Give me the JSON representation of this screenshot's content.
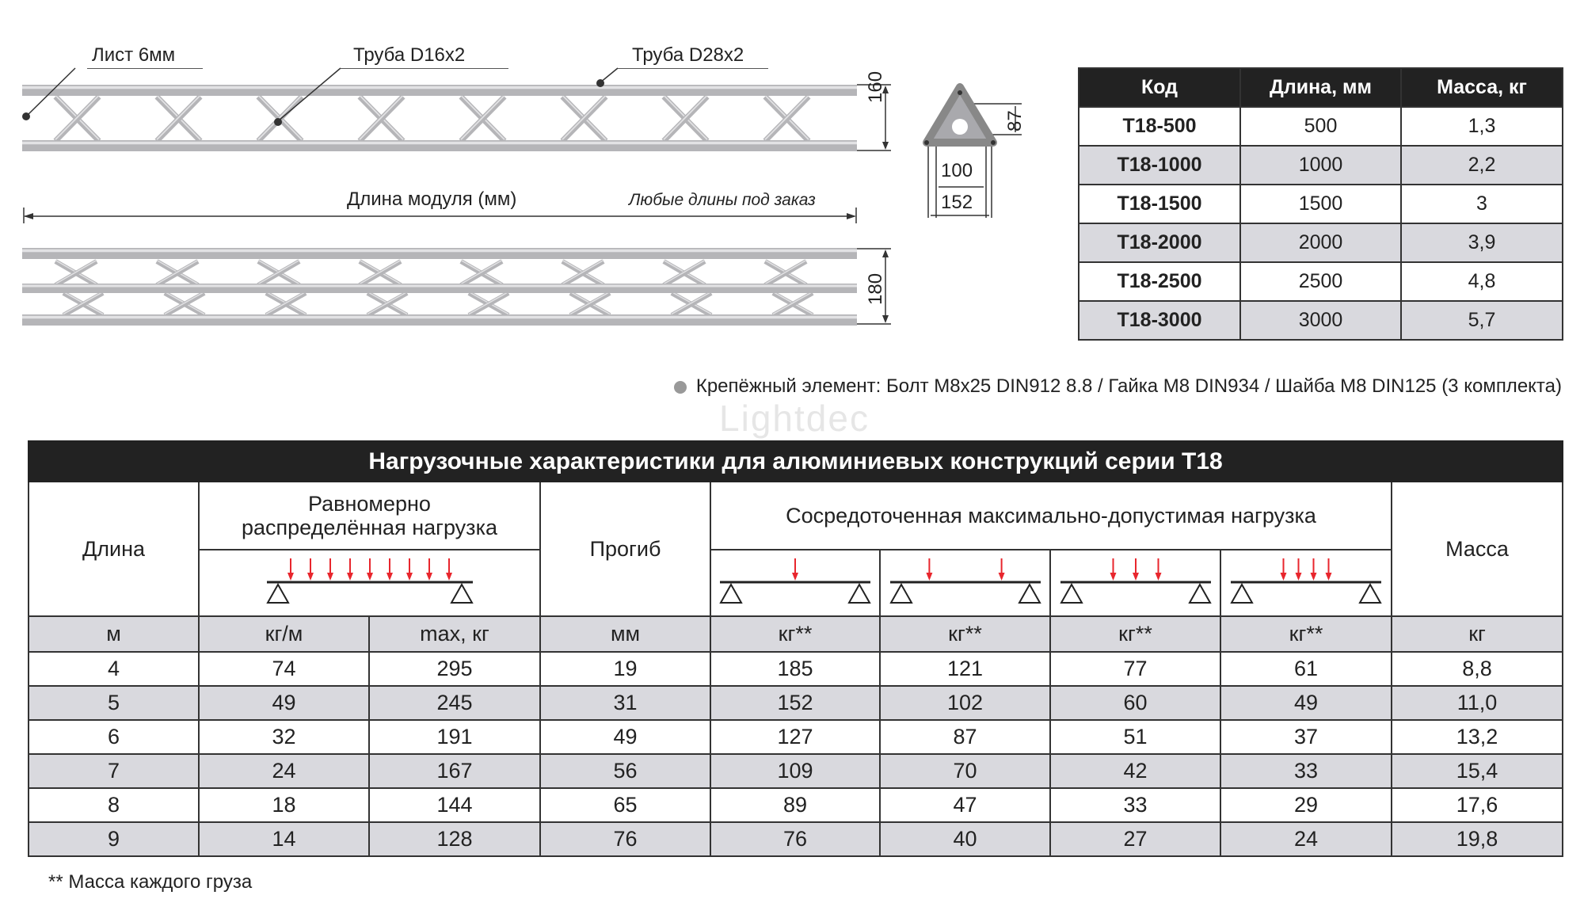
{
  "drawing": {
    "callouts": [
      "Лист 6мм",
      "Труба D16x2",
      "Труба D28x2"
    ],
    "height_top": "160",
    "height_bottom": "180",
    "module_length_label": "Длина модуля (мм)",
    "custom_length_note": "Любые длины под заказ",
    "section_dims": {
      "height": "87",
      "inner": "100",
      "outer": "152"
    }
  },
  "spec_table": {
    "headers": [
      "Код",
      "Длина, мм",
      "Масса, кг"
    ],
    "rows": [
      [
        "T18-500",
        "500",
        "1,3"
      ],
      [
        "T18-1000",
        "1000",
        "2,2"
      ],
      [
        "T18-1500",
        "1500",
        "3"
      ],
      [
        "T18-2000",
        "2000",
        "3,9"
      ],
      [
        "T18-2500",
        "2500",
        "4,8"
      ],
      [
        "T18-3000",
        "3000",
        "5,7"
      ]
    ]
  },
  "fastener_note": "Крепёжный элемент: Болт M8x25 DIN912 8.8 / Гайка M8 DIN934 / Шайба M8 DIN125 (3 комплекта)",
  "load_table": {
    "title": "Нагрузочные характеристики для алюминиевых конструкций серии T18",
    "watermark": "Lightdec",
    "headers": {
      "length": "Длина",
      "uniform": "Равномерно распределённая нагрузка",
      "deflection": "Прогиб",
      "point": "Сосредоточенная максимально-допустимая нагрузка",
      "mass": "Масса"
    },
    "load_icons": [
      {
        "type": "uniform",
        "arrow_count": 9
      },
      {
        "type": "point",
        "arrow_count": 1
      },
      {
        "type": "point",
        "arrow_count": 2
      },
      {
        "type": "point",
        "arrow_count": 3
      },
      {
        "type": "point",
        "arrow_count": 4
      }
    ],
    "units": [
      "м",
      "кг/м",
      "max, кг",
      "мм",
      "кг**",
      "кг**",
      "кг**",
      "кг**",
      "кг"
    ],
    "rows": [
      [
        "4",
        "74",
        "295",
        "19",
        "185",
        "121",
        "77",
        "61",
        "8,8"
      ],
      [
        "5",
        "49",
        "245",
        "31",
        "152",
        "102",
        "60",
        "49",
        "11,0"
      ],
      [
        "6",
        "32",
        "191",
        "49",
        "127",
        "87",
        "51",
        "37",
        "13,2"
      ],
      [
        "7",
        "24",
        "167",
        "56",
        "109",
        "70",
        "42",
        "33",
        "15,4"
      ],
      [
        "8",
        "18",
        "144",
        "65",
        "89",
        "47",
        "33",
        "29",
        "17,6"
      ],
      [
        "9",
        "14",
        "128",
        "76",
        "76",
        "40",
        "27",
        "24",
        "19,8"
      ]
    ]
  },
  "footnote": "** Масса каждого груза",
  "colors": {
    "arrow": "#e8262d",
    "header_bg": "#222222",
    "alt_row": "#d9d9de",
    "truss": "#b5b5b8"
  }
}
